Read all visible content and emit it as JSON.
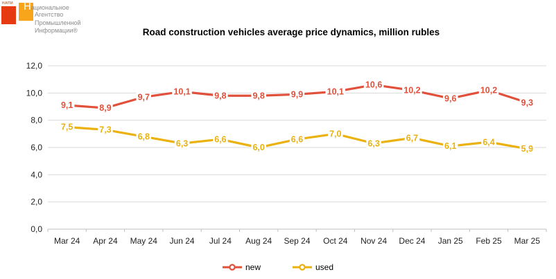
{
  "logo": {
    "brand_small": "НАПИ",
    "lines": [
      "Национальное",
      "Агентство",
      "Промышленной",
      "Информации®"
    ],
    "colors": {
      "red_square": "#E63B11",
      "orange_square": "#F9A51B",
      "text_gray": "#8C8C8C",
      "brand_small_color": "#D4691E"
    }
  },
  "chart_data": {
    "type": "line",
    "title": "Road construction vehicles average price dynamics, million rubles",
    "categories": [
      "Mar 24",
      "Apr 24",
      "May 24",
      "Jun 24",
      "Jul 24",
      "Aug 24",
      "Sep 24",
      "Oct 24",
      "Nov 24",
      "Dec 24",
      "Jan 25",
      "Feb 25",
      "Mar 25"
    ],
    "series": [
      {
        "name": "new",
        "color": "#E1503A",
        "values": [
          9.1,
          8.9,
          9.7,
          10.1,
          9.8,
          9.8,
          9.9,
          10.1,
          10.6,
          10.2,
          9.6,
          10.2,
          9.3
        ]
      },
      {
        "name": "used",
        "color": "#EBB10E",
        "values": [
          7.5,
          7.3,
          6.8,
          6.3,
          6.6,
          6.0,
          6.6,
          7.0,
          6.3,
          6.7,
          6.1,
          6.4,
          5.9
        ]
      }
    ],
    "ylim": [
      0,
      12
    ],
    "ytick_step": 2,
    "ytick_labels": [
      "0,0",
      "2,0",
      "4,0",
      "6,0",
      "8,0",
      "10,0",
      "12,0"
    ],
    "decimal_separator": ",",
    "grid": true,
    "data_labels": true,
    "legend_position": "bottom"
  }
}
